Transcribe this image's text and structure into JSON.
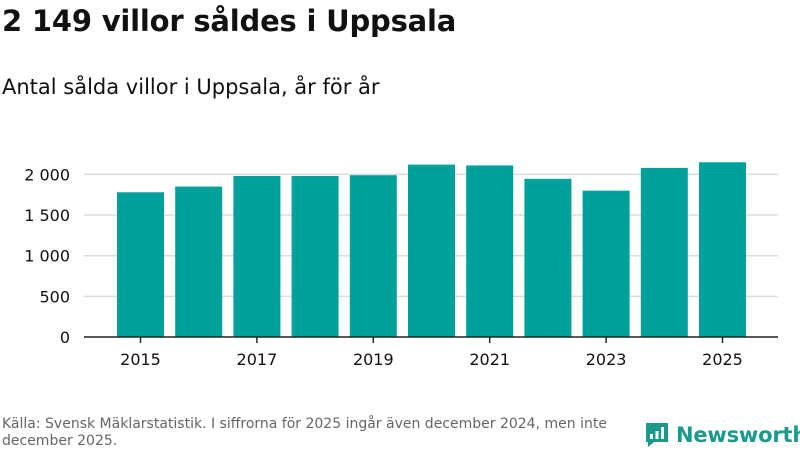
{
  "title": "2 149 villor såldes i Uppsala",
  "subtitle": "Antal sålda villor i Uppsala, år för år",
  "footer": {
    "source": "Källa: Svensk Mäklarstatistik. I siffrorna för 2025 ingår även december 2024, men inte december 2025."
  },
  "brand": {
    "name": "Newsworthy",
    "icon": "newsworthy-logo-icon",
    "color": "#1a9a8c"
  },
  "colors": {
    "bar": "#00a19a",
    "grid": "#dddddd",
    "axis": "#222222",
    "text": "#111111",
    "muted": "#666666"
  },
  "chart_data": {
    "type": "bar",
    "title": "2 149 villor såldes i Uppsala",
    "subtitle": "Antal sålda villor i Uppsala, år för år",
    "xlabel": "",
    "ylabel": "",
    "categories": [
      "2015",
      "2016",
      "2017",
      "2018",
      "2019",
      "2020",
      "2021",
      "2022",
      "2023",
      "2024",
      "2025"
    ],
    "values": [
      1780,
      1850,
      1980,
      1980,
      1990,
      2120,
      2110,
      1945,
      1800,
      2080,
      2149
    ],
    "xtick_labels": [
      "2015",
      "2017",
      "2019",
      "2021",
      "2023",
      "2025"
    ],
    "yticks": [
      0,
      500,
      1000,
      1500,
      2000
    ],
    "ytick_labels": [
      "0",
      "500",
      "1 000",
      "1 500",
      "2 000"
    ],
    "ylim": [
      0,
      2300
    ],
    "grid": true,
    "legend": "none"
  }
}
